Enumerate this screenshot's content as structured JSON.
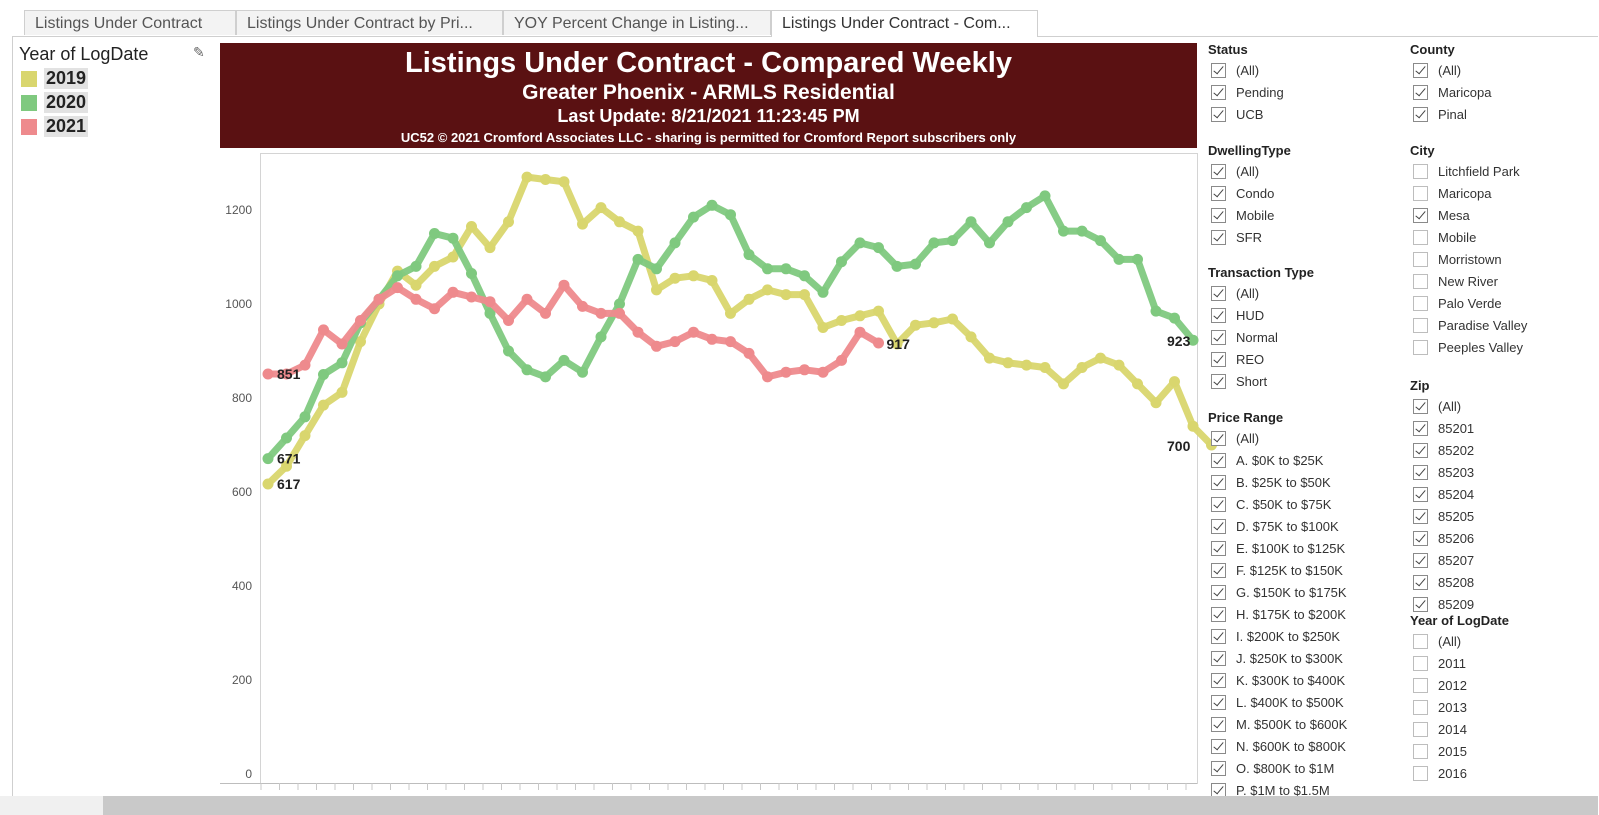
{
  "tabs": [
    {
      "label": "Listings Under Contract",
      "active": false
    },
    {
      "label": "Listings Under Contract by Pri...",
      "active": false
    },
    {
      "label": "YOY Percent Change in Listing...",
      "active": false
    },
    {
      "label": "Listings Under Contract - Com...",
      "active": true
    }
  ],
  "legend": {
    "title": "Year of LogDate",
    "items": [
      {
        "label": "2019",
        "color": "#d9d66e"
      },
      {
        "label": "2020",
        "color": "#7fc97f"
      },
      {
        "label": "2021",
        "color": "#ee8a8d"
      }
    ]
  },
  "header": {
    "title": "Listings Under Contract - Compared Weekly",
    "subtitle": "Greater Phoenix - ARMLS Residential",
    "update": "Last Update: 8/21/2021 11:23:45 PM",
    "copyright": "UC52 © 2021 Cromford Associates LLC - sharing is permitted for Cromford Report subscribers only"
  },
  "chart_data": {
    "type": "line",
    "y_ticks": [
      "0",
      "200",
      "400",
      "600",
      "800",
      "1000",
      "1200"
    ],
    "ylim": [
      0,
      1300
    ],
    "grid": false,
    "series": [
      {
        "name": "2019",
        "color": "#d9d66e",
        "start_label": "617",
        "end_label": "700",
        "values": [
          617,
          655,
          720,
          785,
          812,
          920,
          1000,
          1070,
          1040,
          1080,
          1100,
          1165,
          1120,
          1175,
          1270,
          1265,
          1260,
          1170,
          1205,
          1175,
          1155,
          1030,
          1055,
          1060,
          1050,
          980,
          1010,
          1030,
          1020,
          1020,
          950,
          965,
          975,
          985,
          915,
          955,
          960,
          968,
          930,
          885,
          875,
          870,
          865,
          830,
          865,
          885,
          870,
          830,
          790,
          835,
          740,
          700
        ]
      },
      {
        "name": "2020",
        "color": "#7fc97f",
        "start_label": "671",
        "end_label": "923",
        "values": [
          671,
          715,
          760,
          850,
          875,
          960,
          1010,
          1060,
          1080,
          1150,
          1140,
          1065,
          980,
          900,
          860,
          845,
          880,
          855,
          930,
          1000,
          1095,
          1075,
          1130,
          1185,
          1210,
          1190,
          1105,
          1075,
          1075,
          1060,
          1025,
          1090,
          1130,
          1120,
          1080,
          1085,
          1130,
          1135,
          1175,
          1130,
          1175,
          1205,
          1230,
          1155,
          1155,
          1135,
          1095,
          1095,
          985,
          970,
          923
        ]
      },
      {
        "name": "2021",
        "color": "#ee8a8d",
        "start_label": "851",
        "end_label": "917",
        "values": [
          851,
          851,
          870,
          945,
          915,
          965,
          1010,
          1035,
          1010,
          990,
          1025,
          1015,
          1005,
          965,
          1010,
          980,
          1040,
          995,
          980,
          980,
          940,
          910,
          920,
          940,
          925,
          920,
          895,
          845,
          855,
          860,
          855,
          880,
          940,
          917
        ]
      }
    ]
  },
  "filters": {
    "status": {
      "title": "Status",
      "items": [
        {
          "label": "(All)",
          "checked": true
        },
        {
          "label": "Pending",
          "checked": true
        },
        {
          "label": "UCB",
          "checked": true
        }
      ]
    },
    "dwelling": {
      "title": "DwellingType",
      "items": [
        {
          "label": "(All)",
          "checked": true
        },
        {
          "label": "Condo",
          "checked": true
        },
        {
          "label": "Mobile",
          "checked": true
        },
        {
          "label": "SFR",
          "checked": true
        }
      ]
    },
    "transaction": {
      "title": "Transaction Type",
      "items": [
        {
          "label": "(All)",
          "checked": true
        },
        {
          "label": "HUD",
          "checked": true
        },
        {
          "label": "Normal",
          "checked": true
        },
        {
          "label": "REO",
          "checked": true
        },
        {
          "label": "Short",
          "checked": true
        }
      ]
    },
    "price": {
      "title": "Price Range",
      "items": [
        {
          "label": "(All)",
          "checked": true
        },
        {
          "label": "A. $0K to $25K",
          "checked": true
        },
        {
          "label": "B. $25K to $50K",
          "checked": true
        },
        {
          "label": "C. $50K to $75K",
          "checked": true
        },
        {
          "label": "D. $75K to $100K",
          "checked": true
        },
        {
          "label": "E. $100K to $125K",
          "checked": true
        },
        {
          "label": "F. $125K to $150K",
          "checked": true
        },
        {
          "label": "G. $150K to $175K",
          "checked": true
        },
        {
          "label": "H. $175K to $200K",
          "checked": true
        },
        {
          "label": "I. $200K to $250K",
          "checked": true
        },
        {
          "label": "J. $250K to $300K",
          "checked": true
        },
        {
          "label": "K. $300K to $400K",
          "checked": true
        },
        {
          "label": "L. $400K to $500K",
          "checked": true
        },
        {
          "label": "M. $500K to $600K",
          "checked": true
        },
        {
          "label": "N. $600K to $800K",
          "checked": true
        },
        {
          "label": "O. $800K to $1M",
          "checked": true
        },
        {
          "label": "P. $1M to $1.5M",
          "checked": true
        }
      ]
    },
    "county": {
      "title": "County",
      "items": [
        {
          "label": "(All)",
          "checked": true
        },
        {
          "label": "Maricopa",
          "checked": true
        },
        {
          "label": "Pinal",
          "checked": true
        }
      ]
    },
    "city": {
      "title": "City",
      "items": [
        {
          "label": "Litchfield Park",
          "checked": false
        },
        {
          "label": "Maricopa",
          "checked": false
        },
        {
          "label": "Mesa",
          "checked": true
        },
        {
          "label": "Mobile",
          "checked": false
        },
        {
          "label": "Morristown",
          "checked": false
        },
        {
          "label": "New River",
          "checked": false
        },
        {
          "label": "Palo Verde",
          "checked": false
        },
        {
          "label": "Paradise Valley",
          "checked": false
        },
        {
          "label": "Peeples Valley",
          "checked": false
        }
      ]
    },
    "zip": {
      "title": "Zip",
      "items": [
        {
          "label": "(All)",
          "checked": true
        },
        {
          "label": "85201",
          "checked": true
        },
        {
          "label": "85202",
          "checked": true
        },
        {
          "label": "85203",
          "checked": true
        },
        {
          "label": "85204",
          "checked": true
        },
        {
          "label": "85205",
          "checked": true
        },
        {
          "label": "85206",
          "checked": true
        },
        {
          "label": "85207",
          "checked": true
        },
        {
          "label": "85208",
          "checked": true
        },
        {
          "label": "85209",
          "checked": true
        }
      ]
    },
    "year": {
      "title": "Year of LogDate",
      "items": [
        {
          "label": "(All)",
          "checked": false
        },
        {
          "label": "2011",
          "checked": false
        },
        {
          "label": "2012",
          "checked": false
        },
        {
          "label": "2013",
          "checked": false
        },
        {
          "label": "2014",
          "checked": false
        },
        {
          "label": "2015",
          "checked": false
        },
        {
          "label": "2016",
          "checked": false
        }
      ]
    }
  }
}
